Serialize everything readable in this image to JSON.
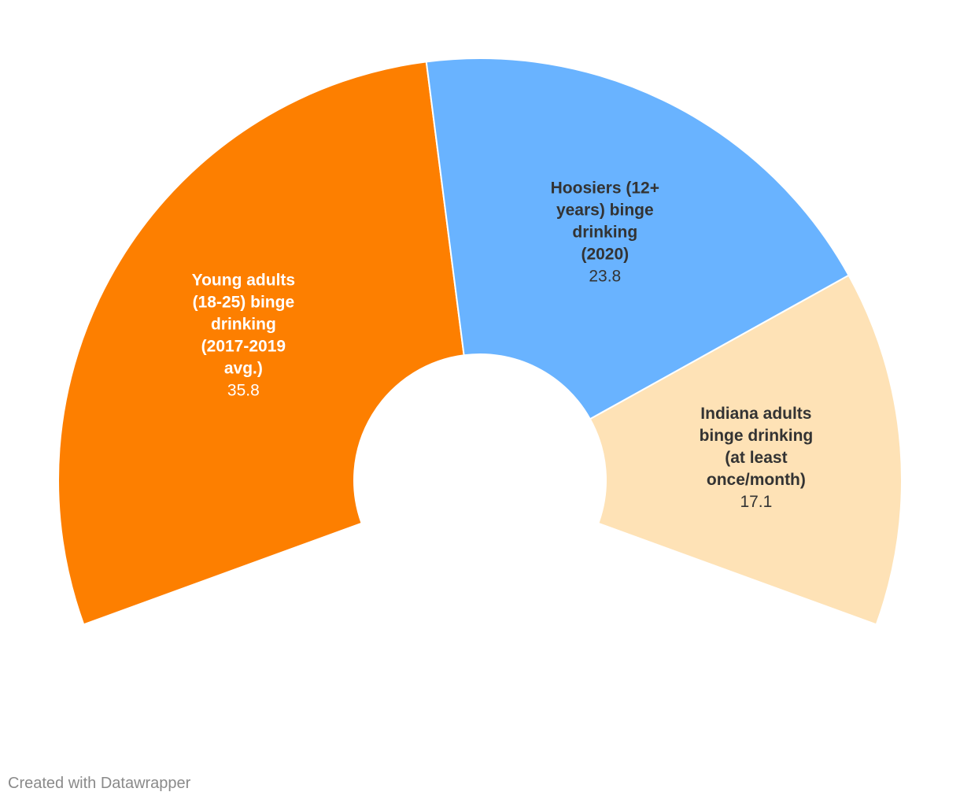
{
  "chart_data": {
    "type": "pie",
    "variant": "semicircle-donut",
    "arc_degrees": 220,
    "slices": [
      {
        "label": "Young adults (18-25) binge drinking (2017-2019 avg.)",
        "label_lines": [
          "Young adults",
          "(18-25) binge",
          "drinking",
          "(2017-2019",
          "avg.)"
        ],
        "value": 35.8,
        "value_text": "35.8",
        "color": "#fd7f00",
        "text_color": "#ffffff"
      },
      {
        "label": "Hoosiers (12+ years) binge drinking (2020)",
        "label_lines": [
          "Hoosiers (12+",
          "years) binge",
          "drinking",
          "(2020)"
        ],
        "value": 23.8,
        "value_text": "23.8",
        "color": "#69b3ff",
        "text_color": "#333333"
      },
      {
        "label": "Indiana adults binge drinking (at least once/month)",
        "label_lines": [
          "Indiana adults",
          "binge drinking",
          "(at least",
          "once/month)"
        ],
        "value": 17.1,
        "value_text": "17.1",
        "color": "#fee2b6",
        "text_color": "#333333"
      }
    ]
  },
  "footer": {
    "credit": "Created with Datawrapper"
  }
}
